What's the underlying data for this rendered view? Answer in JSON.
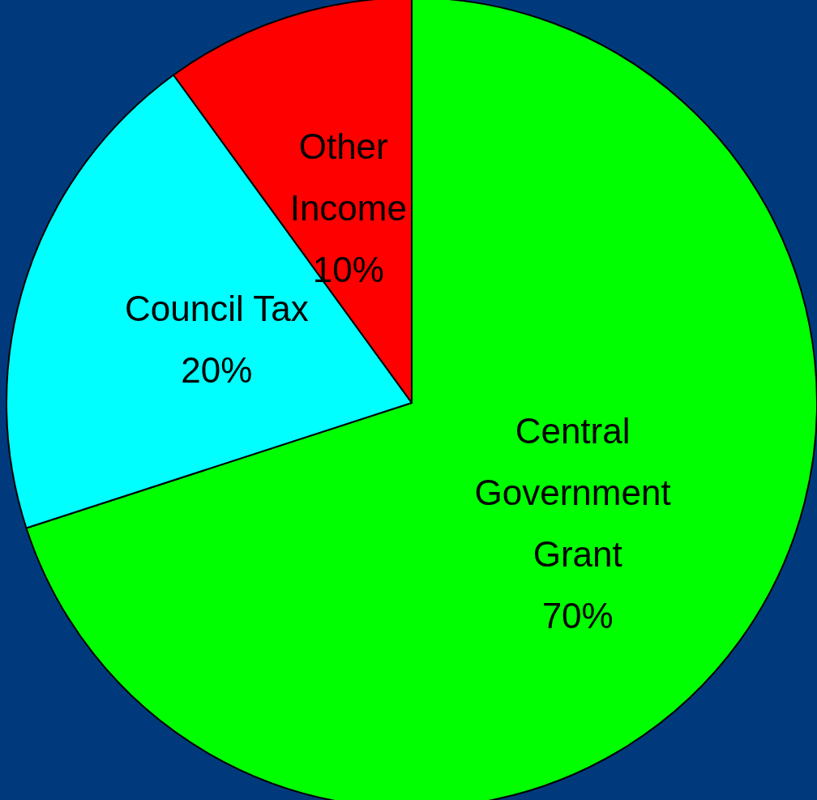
{
  "chart_data": {
    "type": "pie",
    "categories": [
      "Central Government Grant",
      "Council Tax",
      "Other Income"
    ],
    "values": [
      70,
      20,
      10
    ],
    "value_labels": [
      "70%",
      "20%",
      "10%"
    ],
    "colors": [
      "#00ff00",
      "#00ffff",
      "#ff0000"
    ],
    "legend": false
  }
}
